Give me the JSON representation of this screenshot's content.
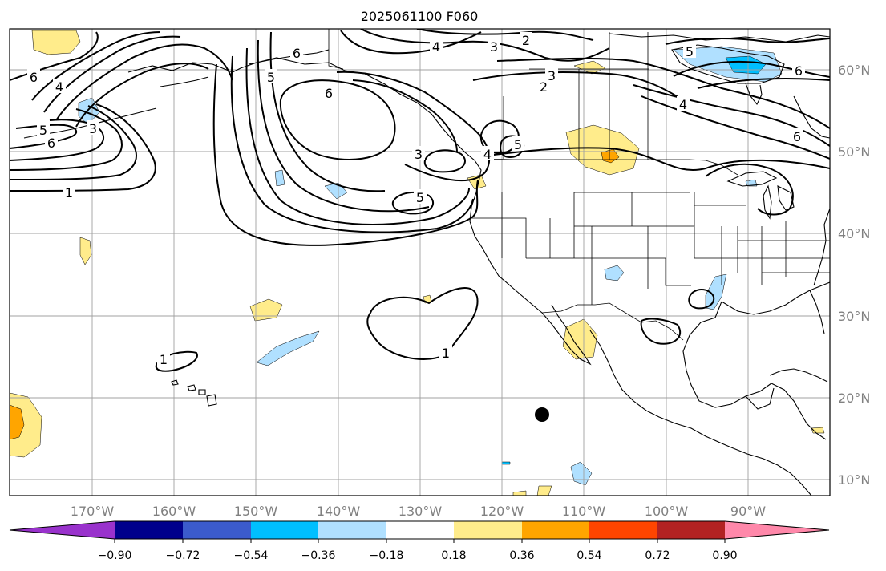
{
  "title": "2025061100 F060",
  "map": {
    "lon_labels": [
      "170°W",
      "160°W",
      "150°W",
      "140°W",
      "130°W",
      "120°W",
      "110°W",
      "100°W",
      "90°W"
    ],
    "lat_labels": [
      "60°N",
      "50°N",
      "40°N",
      "30°N",
      "20°N",
      "10°N"
    ],
    "contour_labels": [
      "1",
      "2",
      "3",
      "4",
      "5",
      "6"
    ],
    "colors": {
      "neg_090": "#9932cc",
      "neg_072": "#00008b",
      "neg_054": "#3b5bcc",
      "neg_036": "#00bfff",
      "neg_018": "#b0e0ff",
      "zero": "#ffffff",
      "pos_018": "#ffec8b",
      "pos_036": "#ffa500",
      "pos_054": "#ff4500",
      "pos_072": "#b22222",
      "pos_090": "#ff88aa"
    }
  },
  "colorbar": {
    "ticks": [
      "−0.90",
      "−0.72",
      "−0.54",
      "−0.36",
      "−0.18",
      "0.18",
      "0.36",
      "0.54",
      "0.72",
      "0.90"
    ]
  }
}
